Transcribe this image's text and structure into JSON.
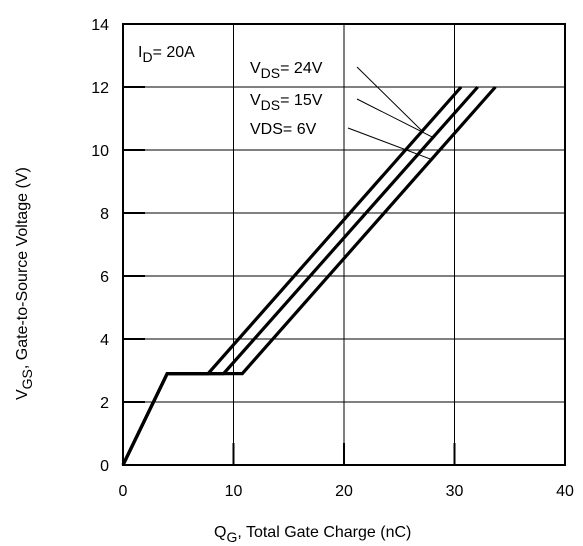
{
  "chart_data": {
    "type": "line",
    "xlabel": {
      "main": "Q",
      "sub": "G",
      "rest": ",  Total Gate Charge (nC)"
    },
    "ylabel": {
      "main": "V",
      "sub": "GS",
      "rest": ", Gate-to-Source Voltage (V)"
    },
    "xlim": [
      0,
      40
    ],
    "ylim": [
      0,
      14
    ],
    "xticks": [
      "0",
      "10",
      "20",
      "30",
      "40"
    ],
    "yticks": [
      "0",
      "2",
      "4",
      "6",
      "8",
      "10",
      "12",
      "14"
    ],
    "grid": true,
    "condition": {
      "main": "I",
      "sub": "D",
      "rest": "= 20A"
    },
    "series": [
      {
        "name": "24V",
        "label": {
          "main": "V",
          "sub": "DS",
          "rest": "= 24V"
        },
        "x": [
          0,
          4,
          7.7,
          30.6
        ],
        "y": [
          0,
          2.9,
          2.9,
          12
        ]
      },
      {
        "name": "15V",
        "label": {
          "main": "V",
          "sub": "DS",
          "rest": "= 15V"
        },
        "x": [
          0,
          4,
          9.1,
          32.1
        ],
        "y": [
          0,
          2.9,
          2.9,
          12
        ]
      },
      {
        "name": "6V",
        "label": {
          "main": "VDS",
          "sub": "",
          "rest": "= 6V"
        },
        "x": [
          0,
          4,
          10.8,
          33.7
        ],
        "y": [
          0,
          2.9,
          2.9,
          12
        ]
      }
    ]
  }
}
